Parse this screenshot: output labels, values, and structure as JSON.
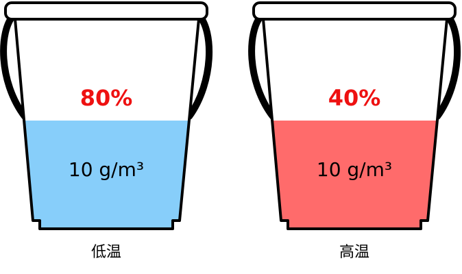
{
  "buckets": [
    {
      "percent": "80%",
      "content": "10 g/m³",
      "label": "低温",
      "color": "#87cefa"
    },
    {
      "percent": "40%",
      "content": "10 g/m³",
      "label": "高温",
      "color": "#ff6b6b"
    }
  ]
}
